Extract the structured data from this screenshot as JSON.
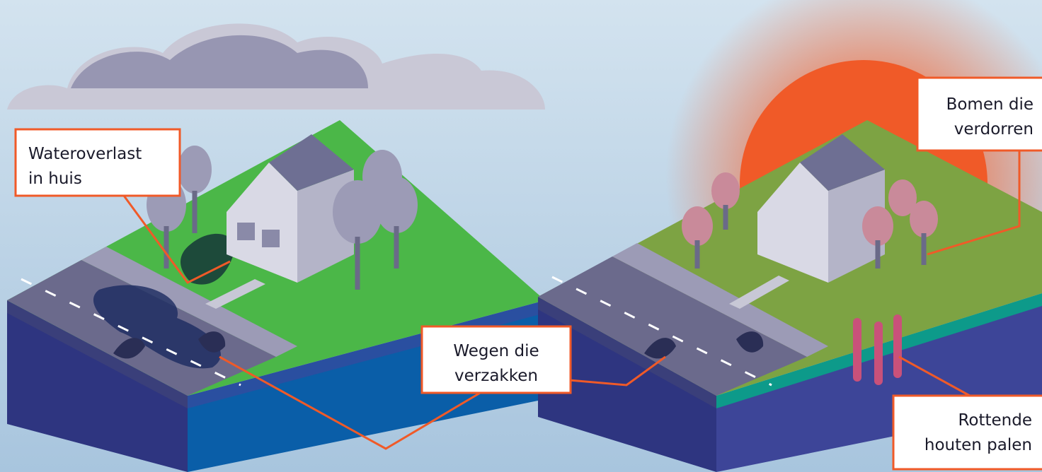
{
  "labels": [
    {
      "lines": [
        "Wateroverlast",
        "in huis"
      ]
    },
    {
      "lines": [
        "Wegen die",
        "verzakken"
      ]
    },
    {
      "lines": [
        "Bomen die",
        "verdorren"
      ]
    },
    {
      "lines": [
        "Rottende",
        "houten palen"
      ]
    }
  ]
}
